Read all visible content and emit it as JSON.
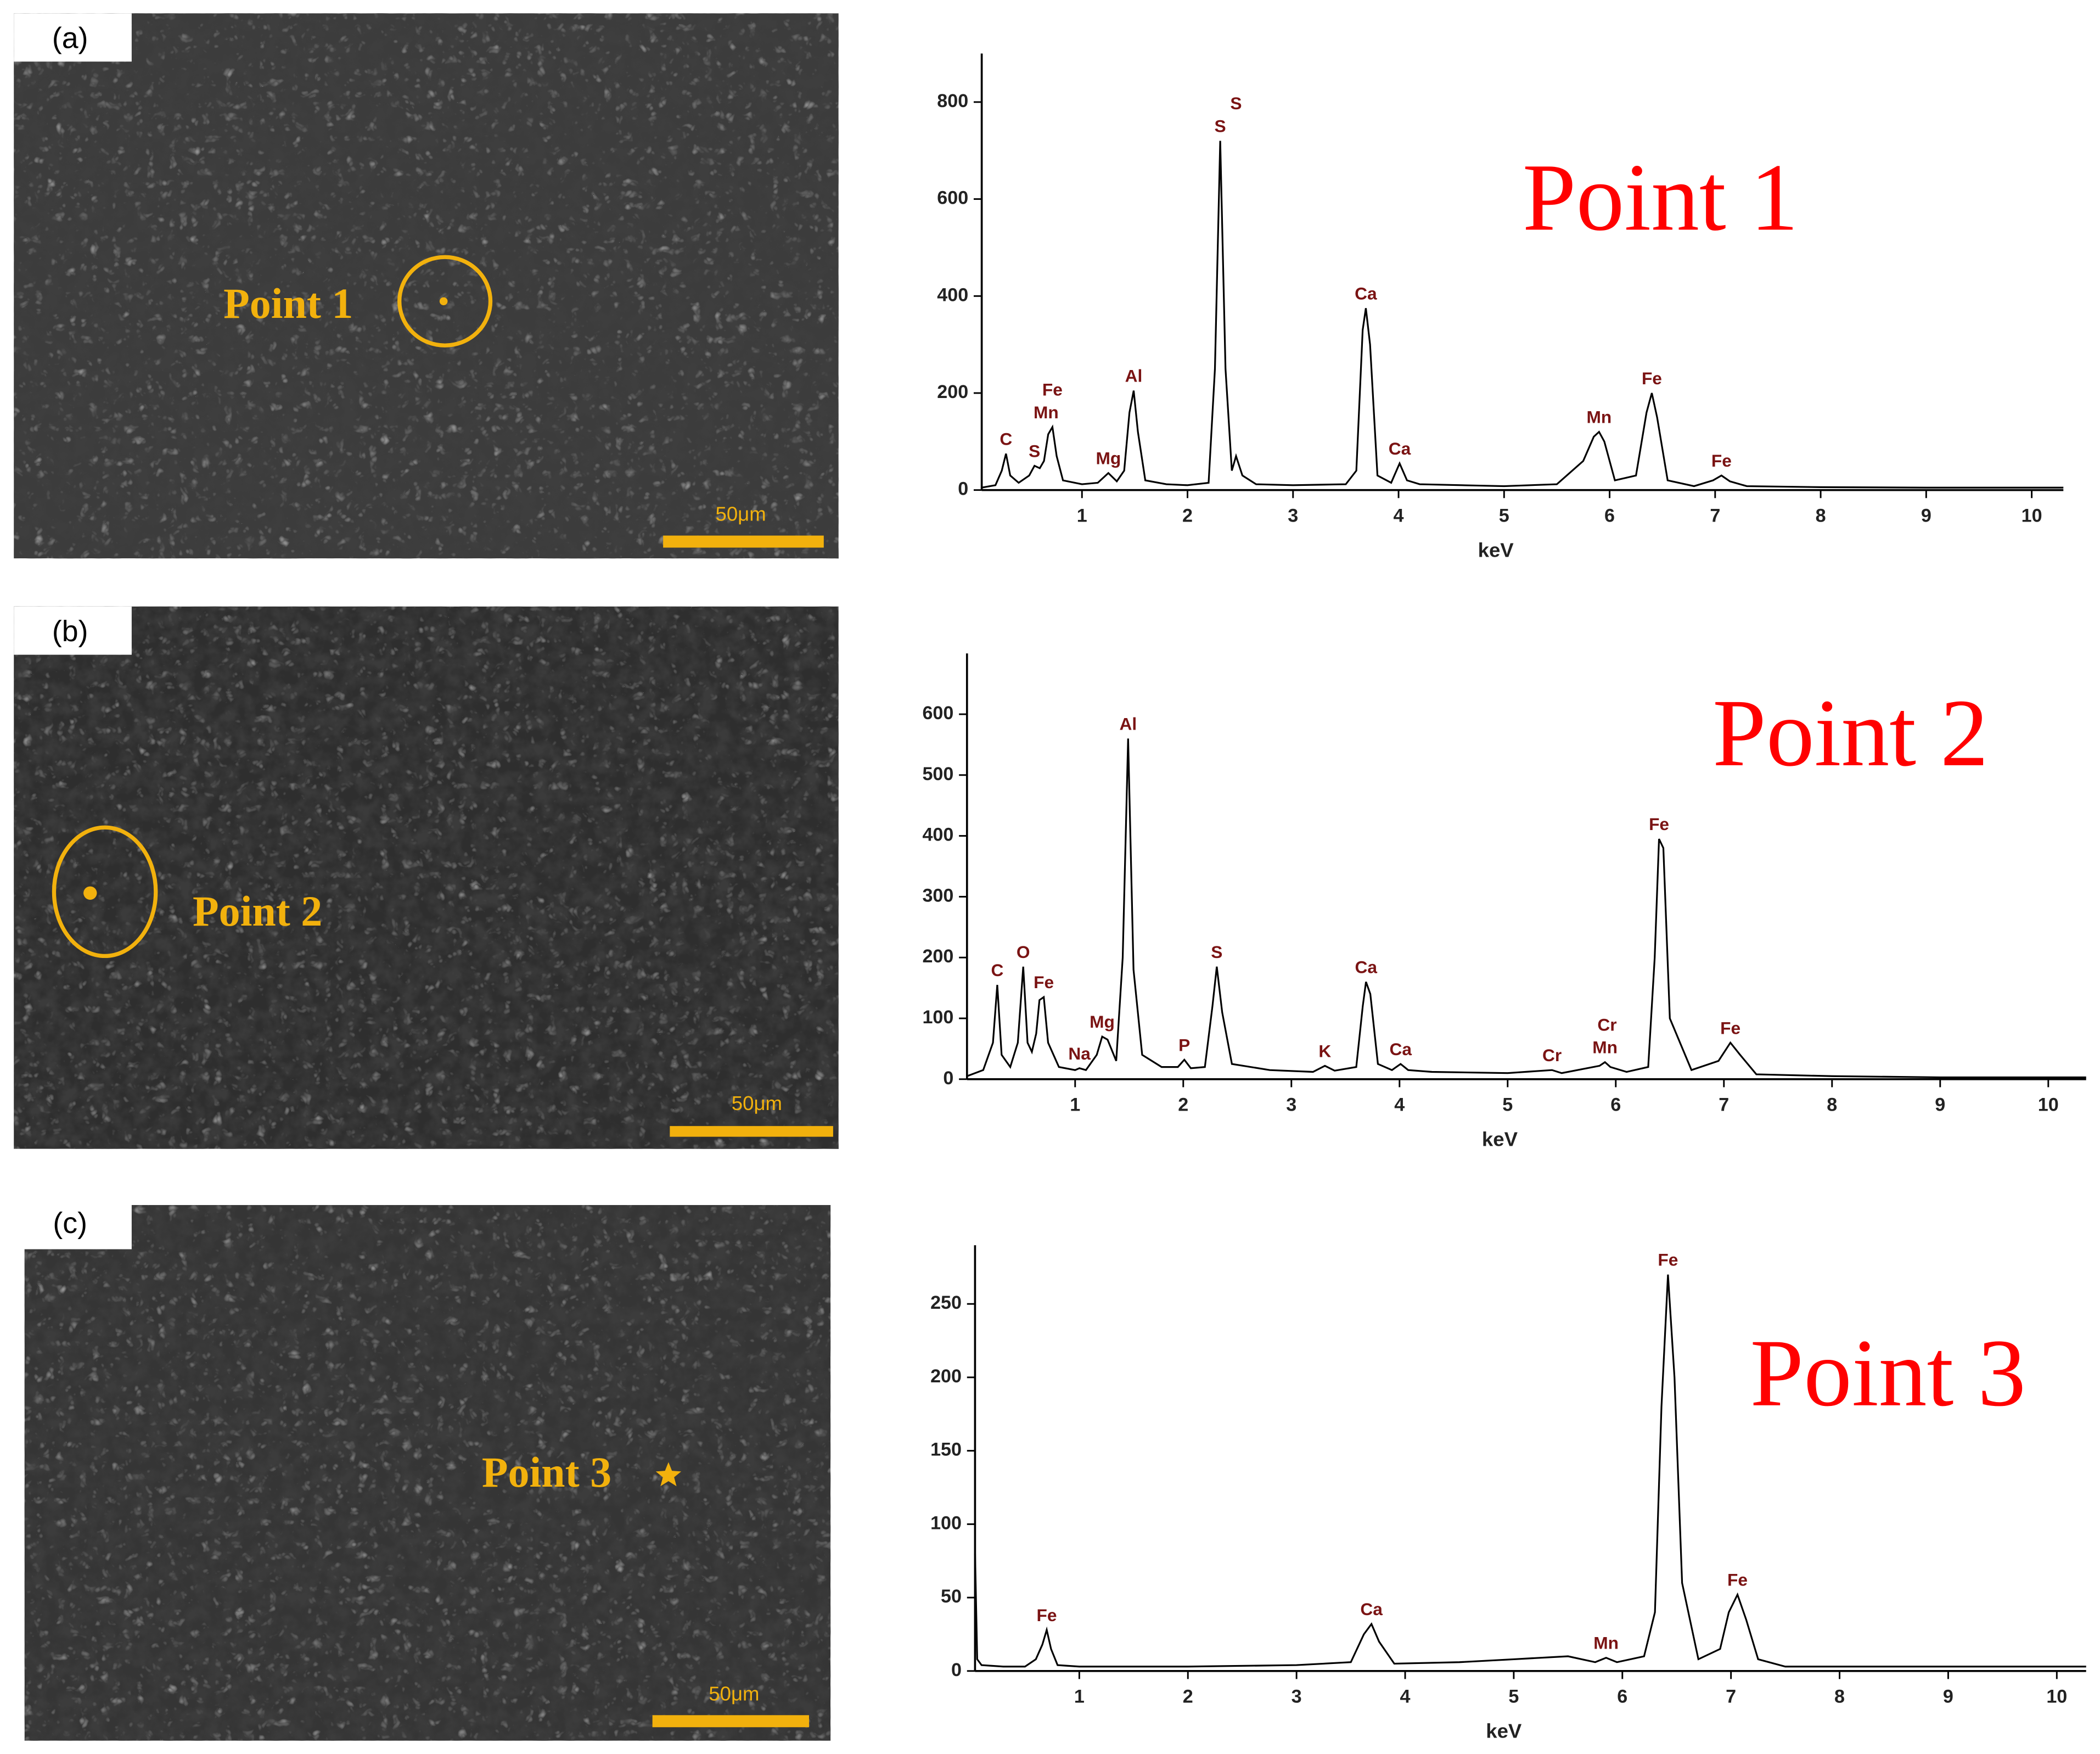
{
  "panels": [
    {
      "label": "(a)",
      "marker": "Point 1",
      "scale_bar": "50μm"
    },
    {
      "label": "(b)",
      "marker": "Point 2",
      "scale_bar": "50μm"
    },
    {
      "label": "(c)",
      "marker": "Point 3",
      "scale_bar": "50μm"
    }
  ],
  "chart_data": [
    {
      "type": "line",
      "title": "Point 1",
      "x_label": "keV",
      "x": [
        0.05,
        0.18,
        0.24,
        0.28,
        0.32,
        0.4,
        0.5,
        0.55,
        0.6,
        0.64,
        0.68,
        0.72,
        0.76,
        0.82,
        1.0,
        1.15,
        1.25,
        1.33,
        1.4,
        1.45,
        1.49,
        1.53,
        1.6,
        1.8,
        2.0,
        2.2,
        2.26,
        2.31,
        2.36,
        2.42,
        2.46,
        2.52,
        2.65,
        3.0,
        3.5,
        3.6,
        3.66,
        3.69,
        3.73,
        3.8,
        3.93,
        4.01,
        4.08,
        4.2,
        4.6,
        5.0,
        5.5,
        5.75,
        5.85,
        5.9,
        5.95,
        6.05,
        6.25,
        6.35,
        6.4,
        6.45,
        6.55,
        6.8,
        6.98,
        7.06,
        7.14,
        7.3,
        8.0,
        9.0,
        10.0,
        10.3
      ],
      "values": [
        5,
        10,
        40,
        75,
        30,
        15,
        30,
        50,
        45,
        60,
        115,
        130,
        70,
        20,
        12,
        15,
        35,
        18,
        40,
        160,
        205,
        120,
        20,
        12,
        10,
        15,
        250,
        720,
        250,
        40,
        70,
        30,
        12,
        10,
        12,
        40,
        330,
        375,
        300,
        30,
        15,
        55,
        20,
        12,
        10,
        8,
        12,
        60,
        110,
        120,
        100,
        20,
        30,
        160,
        200,
        150,
        20,
        8,
        20,
        30,
        18,
        8,
        6,
        5,
        5,
        5
      ],
      "peaks": [
        {
          "label": "C",
          "energy": 0.28
        },
        {
          "label": "S",
          "energy": 0.55
        },
        {
          "label": "Mn",
          "energy": 0.66
        },
        {
          "label": "Fe",
          "energy": 0.72
        },
        {
          "label": "Mg",
          "energy": 1.25
        },
        {
          "label": "Al",
          "energy": 1.49
        },
        {
          "label": "S",
          "energy": 2.31
        },
        {
          "label": "S",
          "energy": 2.46
        },
        {
          "label": "Ca",
          "energy": 3.69
        },
        {
          "label": "Ca",
          "energy": 4.01
        },
        {
          "label": "Mn",
          "energy": 5.9
        },
        {
          "label": "Fe",
          "energy": 6.4
        },
        {
          "label": "Fe",
          "energy": 7.06
        }
      ],
      "xlim": [
        0.05,
        10.3
      ],
      "xticks": [
        1,
        2,
        3,
        4,
        5,
        6,
        7,
        8,
        9,
        10
      ],
      "ylim": [
        0,
        900
      ],
      "yticks": [
        0,
        200,
        400,
        600,
        800
      ],
      "color": "#000000"
    },
    {
      "type": "line",
      "title": "Point 2",
      "x_label": "keV",
      "x": [
        0,
        0.15,
        0.24,
        0.28,
        0.32,
        0.4,
        0.47,
        0.52,
        0.56,
        0.6,
        0.64,
        0.67,
        0.71,
        0.75,
        0.85,
        1.0,
        1.04,
        1.1,
        1.2,
        1.25,
        1.3,
        1.38,
        1.44,
        1.49,
        1.54,
        1.62,
        1.8,
        1.95,
        2.01,
        2.07,
        2.2,
        2.27,
        2.31,
        2.36,
        2.45,
        2.8,
        3.2,
        3.31,
        3.4,
        3.6,
        3.66,
        3.69,
        3.73,
        3.8,
        3.93,
        4.01,
        4.08,
        4.3,
        5.0,
        5.41,
        5.5,
        5.85,
        5.9,
        5.95,
        6.1,
        6.3,
        6.36,
        6.4,
        6.44,
        6.5,
        6.7,
        6.95,
        7.06,
        7.15,
        7.3,
        8.0,
        9.0,
        10.35
      ],
      "values": [
        5,
        15,
        60,
        155,
        40,
        20,
        60,
        185,
        60,
        45,
        75,
        130,
        135,
        60,
        20,
        15,
        18,
        15,
        40,
        70,
        65,
        30,
        200,
        560,
        180,
        40,
        20,
        20,
        32,
        18,
        20,
        120,
        185,
        110,
        25,
        15,
        12,
        22,
        14,
        20,
        120,
        160,
        140,
        25,
        15,
        25,
        15,
        12,
        10,
        15,
        10,
        22,
        28,
        20,
        12,
        20,
        200,
        395,
        380,
        100,
        15,
        30,
        60,
        40,
        8,
        5,
        3,
        3
      ],
      "peaks": [
        {
          "label": "C",
          "energy": 0.28
        },
        {
          "label": "O",
          "energy": 0.52
        },
        {
          "label": "Fe",
          "energy": 0.71
        },
        {
          "label": "Na",
          "energy": 1.04
        },
        {
          "label": "Mg",
          "energy": 1.25
        },
        {
          "label": "Al",
          "energy": 1.49
        },
        {
          "label": "P",
          "energy": 2.01
        },
        {
          "label": "S",
          "energy": 2.31
        },
        {
          "label": "K",
          "energy": 3.31
        },
        {
          "label": "Ca",
          "energy": 3.69
        },
        {
          "label": "Ca",
          "energy": 4.01
        },
        {
          "label": "Cr",
          "energy": 5.41
        },
        {
          "label": "Mn",
          "energy": 5.9
        },
        {
          "label": "Cr",
          "energy": 5.92
        },
        {
          "label": "Fe",
          "energy": 6.4
        },
        {
          "label": "Fe",
          "energy": 7.06
        }
      ],
      "xlim": [
        0,
        10.35
      ],
      "xticks": [
        1,
        2,
        3,
        4,
        5,
        6,
        7,
        8,
        9,
        10
      ],
      "ylim": [
        0,
        700
      ],
      "yticks": [
        0,
        100,
        200,
        300,
        400,
        500,
        600
      ],
      "color": "#000000"
    },
    {
      "type": "line",
      "title": "Point 3",
      "x_label": "keV",
      "x": [
        0.04,
        0.06,
        0.1,
        0.3,
        0.5,
        0.6,
        0.66,
        0.7,
        0.74,
        0.8,
        1.0,
        2.0,
        3.0,
        3.5,
        3.62,
        3.69,
        3.76,
        3.9,
        4.5,
        5.0,
        5.5,
        5.75,
        5.85,
        5.95,
        6.2,
        6.3,
        6.36,
        6.42,
        6.48,
        6.55,
        6.7,
        6.9,
        6.98,
        7.06,
        7.14,
        7.25,
        7.5,
        8.0,
        9.0,
        10.27
      ],
      "values": [
        80,
        8,
        4,
        3,
        3,
        8,
        18,
        28,
        15,
        4,
        3,
        3,
        4,
        6,
        25,
        32,
        20,
        5,
        6,
        8,
        10,
        6,
        9,
        6,
        10,
        40,
        180,
        270,
        200,
        60,
        8,
        15,
        40,
        52,
        35,
        8,
        3,
        3,
        3,
        3
      ],
      "peaks": [
        {
          "label": "Fe",
          "energy": 0.7
        },
        {
          "label": "Ca",
          "energy": 3.69
        },
        {
          "label": "Mn",
          "energy": 5.85
        },
        {
          "label": "Fe",
          "energy": 6.42
        },
        {
          "label": "Fe",
          "energy": 7.06
        }
      ],
      "xlim": [
        0.04,
        10.27
      ],
      "xticks": [
        1,
        2,
        3,
        4,
        5,
        6,
        7,
        8,
        9,
        10
      ],
      "ylim": [
        0,
        290
      ],
      "yticks": [
        0,
        50,
        100,
        150,
        200,
        250
      ],
      "color": "#000000"
    }
  ]
}
